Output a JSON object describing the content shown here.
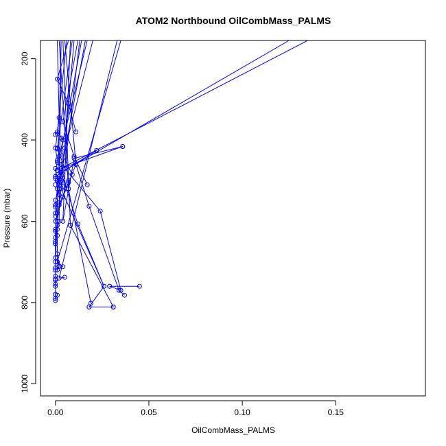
{
  "chart_data": {
    "type": "line",
    "title": "ATOM2 Northbound OilCombMass_PALMS",
    "xlabel": "OilCombMass_PALMS",
    "ylabel": "Pressure (mbar)",
    "xlim": [
      -0.008,
      0.198
    ],
    "ylim": [
      1030,
      155
    ],
    "y_reversed": true,
    "x_ticks": [
      0.0,
      0.05,
      0.1,
      0.15
    ],
    "x_tick_labels": [
      "0.00",
      "0.05",
      "0.10",
      "0.15"
    ],
    "y_ticks": [
      200,
      400,
      600,
      800,
      1000
    ],
    "y_tick_labels": [
      "200",
      "400",
      "600",
      "800",
      "1000"
    ],
    "line_color": "#0000ff",
    "marker": "open-circle",
    "grid": false,
    "legend": "none",
    "series": [
      {
        "x": [
          0.0,
          0.0,
          0.0,
          0.0,
          0.0,
          0.0,
          0.001,
          0.0,
          0.001,
          0.0
        ],
        "y": [
          795,
          780,
          760,
          735,
          715,
          655,
          610,
          560,
          520,
          490
        ]
      },
      {
        "x": [
          0.0,
          0.001,
          0.0,
          0.001,
          0.002,
          0.001
        ],
        "y": [
          490,
          450,
          420,
          385,
          345,
          155
        ]
      },
      {
        "x": [
          0.018,
          0.031
        ],
        "y": [
          811,
          811
        ]
      },
      {
        "x": [
          0.018,
          0.026,
          0.003,
          0.01
        ],
        "y": [
          811,
          760,
          520,
          155
        ]
      },
      {
        "x": [
          0.019,
          0.007,
          0.002
        ],
        "y": [
          802,
          520,
          155
        ]
      },
      {
        "x": [
          0.045,
          0.029
        ],
        "y": [
          760,
          760
        ]
      },
      {
        "x": [
          0.029,
          0.035,
          0.024,
          0.005,
          0.013
        ],
        "y": [
          760,
          770,
          575,
          470,
          155
        ]
      },
      {
        "x": [
          0.037,
          0.034,
          0.018,
          0.011,
          0.005
        ],
        "y": [
          782,
          770,
          563,
          460,
          155
        ]
      },
      {
        "x": [
          0.026,
          0.012,
          0.003,
          0.016
        ],
        "y": [
          760,
          607,
          480,
          155
        ]
      },
      {
        "x": [
          0.031,
          0.008,
          0.004
        ],
        "y": [
          811,
          610,
          155
        ]
      },
      {
        "x": [
          0.036,
          0.01,
          0.004,
          0.008
        ],
        "y": [
          416,
          445,
          600,
          155
        ]
      },
      {
        "x": [
          0.036,
          0.003,
          0.135
        ],
        "y": [
          416,
          470,
          155
        ]
      },
      {
        "x": [
          0.022,
          0.003,
          0.125
        ],
        "y": [
          426,
          480,
          155
        ]
      },
      {
        "x": [
          0.017,
          0.01,
          0.004,
          0.012
        ],
        "y": [
          510,
          440,
          355,
          155
        ]
      },
      {
        "x": [
          0.011,
          0.007,
          0.001,
          0.007
        ],
        "y": [
          380,
          310,
          250,
          155
        ]
      },
      {
        "x": [
          0.005,
          0.002,
          0.033
        ],
        "y": [
          738,
          740,
          155
        ]
      },
      {
        "x": [
          0.004,
          0.001,
          0.035
        ],
        "y": [
          712,
          700,
          155
        ]
      },
      {
        "x": [
          0.002,
          0.001,
          0.001,
          0.002,
          0.003
        ],
        "y": [
          712,
          680,
          620,
          600,
          155
        ]
      },
      {
        "x": [
          0.009,
          0.003,
          0.014
        ],
        "y": [
          485,
          430,
          155
        ]
      },
      {
        "x": [
          0.006,
          0.003,
          0.02
        ],
        "y": [
          520,
          460,
          155
        ]
      },
      {
        "x": [
          0.003,
          0.002,
          0.017
        ],
        "y": [
          500,
          440,
          155
        ]
      },
      {
        "x": [
          0.005,
          0.001,
          0.009
        ],
        "y": [
          470,
          420,
          155
        ]
      },
      {
        "x": [
          0.004,
          0.001,
          0.006
        ],
        "y": [
          400,
          380,
          155
        ]
      },
      {
        "x": [
          0.002,
          0.0,
          0.001,
          0.003
        ],
        "y": [
          490,
          560,
          580,
          155
        ]
      },
      {
        "x": [
          0.011,
          0.004,
          0.0
        ],
        "y": [
          460,
          540,
          600
        ]
      },
      {
        "x": [
          0.007,
          0.002,
          0.0
        ],
        "y": [
          505,
          560,
          640
        ]
      },
      {
        "x": [
          0.003,
          0.001,
          0.0
        ],
        "y": [
          520,
          600,
          690
        ]
      },
      {
        "x": [
          0.004,
          0.002,
          0.001
        ],
        "y": [
          515,
          505,
          500
        ]
      },
      {
        "x": [
          0.0,
          0.002,
          0.0
        ],
        "y": [
          580,
          520,
          470
        ]
      },
      {
        "x": [
          0.001,
          0.002,
          0.001
        ],
        "y": [
          720,
          710,
          700
        ]
      },
      {
        "x": [
          0.0,
          0.0,
          0.0
        ],
        "y": [
          700,
          650,
          620
        ]
      },
      {
        "x": [
          0.0,
          0.0
        ],
        "y": [
          755,
          745
        ]
      },
      {
        "x": [
          0.0,
          0.001
        ],
        "y": [
          790,
          782
        ]
      }
    ],
    "extra_points": [
      {
        "x": 0.0,
        "y": 565
      },
      {
        "x": 0.0,
        "y": 588
      },
      {
        "x": 0.0,
        "y": 548
      },
      {
        "x": 0.0,
        "y": 510
      },
      {
        "x": 0.0,
        "y": 495
      },
      {
        "x": 0.001,
        "y": 475
      },
      {
        "x": 0.0,
        "y": 720
      },
      {
        "x": 0.0,
        "y": 742
      },
      {
        "x": 0.0,
        "y": 780
      },
      {
        "x": 0.0,
        "y": 655
      },
      {
        "x": 0.001,
        "y": 635
      },
      {
        "x": 0.0,
        "y": 625
      },
      {
        "x": 0.002,
        "y": 495
      },
      {
        "x": 0.003,
        "y": 505
      },
      {
        "x": 0.002,
        "y": 555
      },
      {
        "x": 0.007,
        "y": 500
      },
      {
        "x": 0.002,
        "y": 535
      },
      {
        "x": 0.001,
        "y": 455
      },
      {
        "x": 0.001,
        "y": 422
      },
      {
        "x": 0.0,
        "y": 387
      },
      {
        "x": 0.003,
        "y": 395
      },
      {
        "x": 0.005,
        "y": 420
      },
      {
        "x": 0.004,
        "y": 485
      }
    ]
  }
}
